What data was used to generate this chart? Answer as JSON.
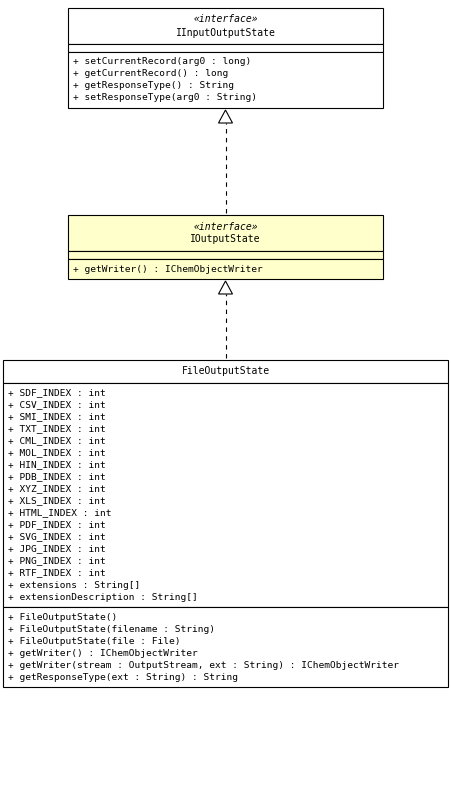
{
  "bg_color": "#ffffff",
  "fig_width": 4.51,
  "fig_height": 7.87,
  "dpi": 100,
  "font_family": "DejaVu Sans Mono",
  "font_size_title": 7.0,
  "font_size_body": 6.8,
  "c1_title": [
    "«interface»",
    "IInputOutputState"
  ],
  "c1_bg": "#ffffff",
  "c1_empty": [],
  "c1_methods": [
    "+ setCurrentRecord(arg0 : long)",
    "+ getCurrentRecord() : long",
    "+ getResponseType() : String",
    "+ setResponseType(arg0 : String)"
  ],
  "c2_title": [
    "«interface»",
    "IOutputState"
  ],
  "c2_bg": "#ffffcc",
  "c2_empty": [],
  "c2_methods": [
    "+ getWriter() : IChemObjectWriter"
  ],
  "c3_title": [
    "FileOutputState"
  ],
  "c3_bg": "#ffffff",
  "c3_fields": [
    "+ SDF_INDEX : int",
    "+ CSV_INDEX : int",
    "+ SMI_INDEX : int",
    "+ TXT_INDEX : int",
    "+ CML_INDEX : int",
    "+ MOL_INDEX : int",
    "+ HIN_INDEX : int",
    "+ PDB_INDEX : int",
    "+ XYZ_INDEX : int",
    "+ XLS_INDEX : int",
    "+ HTML_INDEX : int",
    "+ PDF_INDEX : int",
    "+ SVG_INDEX : int",
    "+ JPG_INDEX : int",
    "+ PNG_INDEX : int",
    "+ RTF_INDEX : int",
    "+ extensions : String[]",
    "+ extensionDescription : String[]"
  ],
  "c3_methods": [
    "+ FileOutputState()",
    "+ FileOutputState(filename : String)",
    "+ FileOutputState(file : File)",
    "+ getWriter() : IChemObjectWriter",
    "+ getWriter(stream : OutputStream, ext : String) : IChemObjectWriter",
    "+ getResponseType(ext : String) : String"
  ]
}
